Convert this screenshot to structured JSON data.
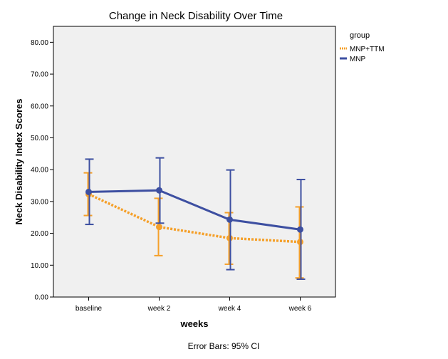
{
  "chart_data": {
    "type": "line",
    "title": "Change in Neck Disability Over Time",
    "xlabel": "weeks",
    "ylabel": "Neck Disability Index Scores",
    "categories": [
      "baseline",
      "week 2",
      "week 4",
      "week 6"
    ],
    "ylim": [
      0,
      85
    ],
    "yticks": [
      "0.00",
      "10.00",
      "20.00",
      "30.00",
      "40.00",
      "50.00",
      "60.00",
      "70.00",
      "80.00"
    ],
    "ytick_values": [
      0,
      10,
      20,
      30,
      40,
      50,
      60,
      70,
      80
    ],
    "legend_title": "group",
    "legend_position": "top-right",
    "series": [
      {
        "name": "MNP+TTM",
        "color": "#f5a02a",
        "style": "dotted",
        "values": [
          32.3,
          22.0,
          18.5,
          17.3
        ],
        "ci_low": [
          25.6,
          13.0,
          10.3,
          6.0
        ],
        "ci_high": [
          39.0,
          31.0,
          26.5,
          28.3
        ]
      },
      {
        "name": "MNP",
        "color": "#3d4fa1",
        "style": "solid",
        "values": [
          33.0,
          33.5,
          24.3,
          21.2
        ],
        "ci_low": [
          22.8,
          23.2,
          8.6,
          5.6
        ],
        "ci_high": [
          43.3,
          43.7,
          39.9,
          36.9
        ]
      }
    ],
    "plot_background": "#f0f0f0",
    "footnote": "Error Bars: 95% CI"
  }
}
